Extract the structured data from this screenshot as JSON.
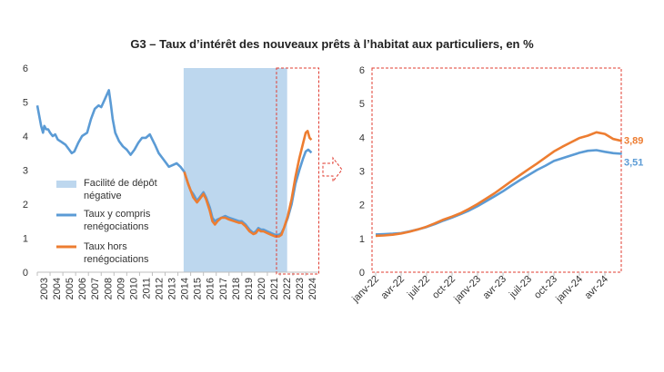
{
  "title": "G3 – Taux d’intérêt des nouveaux prêts à l’habitat aux particuliers, en %",
  "colors": {
    "series_incl": "#5b9bd5",
    "series_excl": "#ed7d31",
    "shade": "#bdd7ee",
    "highlight": "#e03c31",
    "axis": "#bfbfbf",
    "text": "#333333"
  },
  "chart_data": [
    {
      "type": "line",
      "panel": "left",
      "ylim": [
        0,
        6
      ],
      "yticks": [
        "0",
        "1",
        "2",
        "3",
        "4",
        "5",
        "6"
      ],
      "xlim": [
        2003.0,
        2024.99
      ],
      "xticks": [
        "2003",
        "2004",
        "2005",
        "2006",
        "2007",
        "2008",
        "2009",
        "2010",
        "2011",
        "2012",
        "2013",
        "2014",
        "2015",
        "2016",
        "2017",
        "2018",
        "2019",
        "2020",
        "2021",
        "2022",
        "2023",
        "2024"
      ],
      "shaded_region": {
        "label": "Facilité de dépôt négative",
        "from": 2014.45,
        "to": 2022.55
      },
      "highlight_box": {
        "from": 2022.0,
        "to": 2024.6
      },
      "legend": [
        {
          "key": "shade",
          "label": "Facilité de dépôt négative"
        },
        {
          "key": "series_incl",
          "label": "Taux y compris renégociations"
        },
        {
          "key": "series_excl",
          "label": "Taux hors renégociations"
        }
      ],
      "series": [
        {
          "name": "Taux y compris renégociations",
          "points": [
            [
              2003.0,
              4.9
            ],
            [
              2003.15,
              4.6
            ],
            [
              2003.3,
              4.3
            ],
            [
              2003.45,
              4.1
            ],
            [
              2003.55,
              4.3
            ],
            [
              2003.7,
              4.2
            ],
            [
              2003.85,
              4.2
            ],
            [
              2004.0,
              4.1
            ],
            [
              2004.2,
              4.0
            ],
            [
              2004.4,
              4.05
            ],
            [
              2004.6,
              3.9
            ],
            [
              2004.8,
              3.85
            ],
            [
              2005.0,
              3.8
            ],
            [
              2005.2,
              3.75
            ],
            [
              2005.5,
              3.6
            ],
            [
              2005.7,
              3.5
            ],
            [
              2005.9,
              3.55
            ],
            [
              2006.2,
              3.8
            ],
            [
              2006.5,
              4.0
            ],
            [
              2006.7,
              4.05
            ],
            [
              2006.9,
              4.1
            ],
            [
              2007.2,
              4.5
            ],
            [
              2007.5,
              4.8
            ],
            [
              2007.8,
              4.9
            ],
            [
              2008.0,
              4.85
            ],
            [
              2008.3,
              5.1
            ],
            [
              2008.6,
              5.35
            ],
            [
              2008.75,
              4.95
            ],
            [
              2008.9,
              4.5
            ],
            [
              2009.1,
              4.1
            ],
            [
              2009.4,
              3.85
            ],
            [
              2009.7,
              3.7
            ],
            [
              2010.0,
              3.6
            ],
            [
              2010.3,
              3.45
            ],
            [
              2010.6,
              3.6
            ],
            [
              2010.9,
              3.8
            ],
            [
              2011.2,
              3.95
            ],
            [
              2011.5,
              3.95
            ],
            [
              2011.8,
              4.05
            ],
            [
              2012.0,
              3.9
            ],
            [
              2012.2,
              3.75
            ],
            [
              2012.5,
              3.5
            ],
            [
              2012.8,
              3.35
            ],
            [
              2013.0,
              3.25
            ],
            [
              2013.3,
              3.1
            ],
            [
              2013.6,
              3.15
            ],
            [
              2013.9,
              3.2
            ],
            [
              2014.2,
              3.1
            ],
            [
              2014.5,
              2.95
            ],
            [
              2014.8,
              2.6
            ],
            [
              2015.0,
              2.4
            ],
            [
              2015.2,
              2.3
            ],
            [
              2015.5,
              2.1
            ],
            [
              2015.7,
              2.2
            ],
            [
              2016.0,
              2.35
            ],
            [
              2016.2,
              2.2
            ],
            [
              2016.5,
              1.9
            ],
            [
              2016.7,
              1.6
            ],
            [
              2016.9,
              1.5
            ],
            [
              2017.1,
              1.55
            ],
            [
              2017.4,
              1.6
            ],
            [
              2017.7,
              1.65
            ],
            [
              2018.0,
              1.6
            ],
            [
              2018.4,
              1.55
            ],
            [
              2018.8,
              1.5
            ],
            [
              2019.0,
              1.5
            ],
            [
              2019.3,
              1.4
            ],
            [
              2019.6,
              1.25
            ],
            [
              2019.9,
              1.15
            ],
            [
              2020.1,
              1.2
            ],
            [
              2020.3,
              1.3
            ],
            [
              2020.5,
              1.25
            ],
            [
              2020.7,
              1.25
            ],
            [
              2021.0,
              1.2
            ],
            [
              2021.3,
              1.15
            ],
            [
              2021.6,
              1.1
            ],
            [
              2021.9,
              1.1
            ],
            [
              2022.1,
              1.15
            ],
            [
              2022.3,
              1.3
            ],
            [
              2022.6,
              1.6
            ],
            [
              2022.9,
              2.0
            ],
            [
              2023.2,
              2.6
            ],
            [
              2023.5,
              3.0
            ],
            [
              2023.8,
              3.35
            ],
            [
              2024.0,
              3.55
            ],
            [
              2024.2,
              3.6
            ],
            [
              2024.35,
              3.55
            ],
            [
              2024.45,
              3.51
            ]
          ]
        },
        {
          "name": "Taux hors renégociations",
          "points": [
            [
              2014.5,
              2.95
            ],
            [
              2014.8,
              2.6
            ],
            [
              2015.0,
              2.4
            ],
            [
              2015.2,
              2.2
            ],
            [
              2015.5,
              2.05
            ],
            [
              2015.7,
              2.15
            ],
            [
              2016.0,
              2.3
            ],
            [
              2016.2,
              2.15
            ],
            [
              2016.5,
              1.8
            ],
            [
              2016.7,
              1.5
            ],
            [
              2016.9,
              1.4
            ],
            [
              2017.1,
              1.5
            ],
            [
              2017.4,
              1.6
            ],
            [
              2017.7,
              1.6
            ],
            [
              2018.0,
              1.55
            ],
            [
              2018.4,
              1.5
            ],
            [
              2018.8,
              1.45
            ],
            [
              2019.0,
              1.45
            ],
            [
              2019.3,
              1.35
            ],
            [
              2019.6,
              1.2
            ],
            [
              2019.9,
              1.12
            ],
            [
              2020.1,
              1.15
            ],
            [
              2020.3,
              1.25
            ],
            [
              2020.5,
              1.2
            ],
            [
              2020.7,
              1.2
            ],
            [
              2021.0,
              1.15
            ],
            [
              2021.3,
              1.1
            ],
            [
              2021.6,
              1.05
            ],
            [
              2021.9,
              1.05
            ],
            [
              2022.1,
              1.1
            ],
            [
              2022.3,
              1.3
            ],
            [
              2022.6,
              1.65
            ],
            [
              2022.9,
              2.15
            ],
            [
              2023.2,
              2.8
            ],
            [
              2023.5,
              3.35
            ],
            [
              2023.8,
              3.8
            ],
            [
              2024.0,
              4.1
            ],
            [
              2024.15,
              4.15
            ],
            [
              2024.3,
              3.95
            ],
            [
              2024.45,
              3.89
            ]
          ]
        }
      ]
    },
    {
      "type": "line",
      "panel": "right",
      "ylim": [
        0,
        6
      ],
      "yticks": [
        "0",
        "1",
        "2",
        "3",
        "4",
        "5",
        "6"
      ],
      "xlim": [
        0,
        28.5
      ],
      "xticks": [
        {
          "label": "janv-22",
          "x": 0
        },
        {
          "label": "avr-22",
          "x": 3
        },
        {
          "label": "juil-22",
          "x": 6
        },
        {
          "label": "oct-22",
          "x": 9
        },
        {
          "label": "janv-23",
          "x": 12
        },
        {
          "label": "avr-23",
          "x": 15
        },
        {
          "label": "juil-23",
          "x": 18
        },
        {
          "label": "oct-23",
          "x": 21
        },
        {
          "label": "janv-24",
          "x": 24
        },
        {
          "label": "avr-24",
          "x": 27
        }
      ],
      "end_labels": [
        {
          "series": "Taux hors renégociations",
          "text": "3,89",
          "value": 3.89
        },
        {
          "series": "Taux y compris renégociations",
          "text": "3,51",
          "value": 3.51
        }
      ],
      "series": [
        {
          "name": "Taux hors renégociations",
          "values": [
            1.08,
            1.09,
            1.11,
            1.15,
            1.2,
            1.27,
            1.35,
            1.45,
            1.56,
            1.65,
            1.75,
            1.88,
            2.02,
            2.18,
            2.34,
            2.52,
            2.7,
            2.88,
            3.05,
            3.22,
            3.4,
            3.58,
            3.72,
            3.85,
            3.98,
            4.05,
            4.15,
            4.1,
            3.95,
            3.89
          ]
        },
        {
          "name": "Taux y compris renégociations",
          "values": [
            1.12,
            1.13,
            1.14,
            1.16,
            1.21,
            1.27,
            1.34,
            1.43,
            1.53,
            1.62,
            1.72,
            1.83,
            1.96,
            2.1,
            2.25,
            2.4,
            2.57,
            2.73,
            2.88,
            3.03,
            3.16,
            3.3,
            3.38,
            3.46,
            3.54,
            3.6,
            3.62,
            3.57,
            3.53,
            3.51
          ]
        }
      ]
    }
  ]
}
